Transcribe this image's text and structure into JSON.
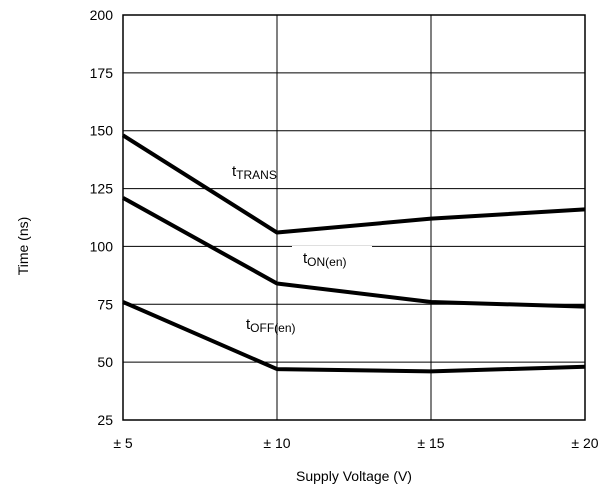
{
  "chart_data": {
    "type": "line",
    "xlabel": "Supply Voltage (V)",
    "ylabel": "Time (ns)",
    "categories": [
      "± 5",
      "± 10",
      "± 15",
      "± 20"
    ],
    "x": [
      5,
      10,
      15,
      20
    ],
    "xlim": [
      5,
      20
    ],
    "ylim": [
      25,
      200
    ],
    "yticks": [
      25,
      50,
      75,
      100,
      125,
      150,
      175,
      200
    ],
    "grid": true,
    "series": [
      {
        "name": "tTRANS",
        "label_main": "t",
        "label_sub": "TRANS",
        "values": [
          148,
          106,
          112,
          116
        ]
      },
      {
        "name": "tON(en)",
        "label_main": "t",
        "label_sub": "ON(en)",
        "values": [
          121,
          84,
          76,
          74
        ]
      },
      {
        "name": "tOFF(en)",
        "label_main": "t",
        "label_sub": "OFF(en)",
        "values": [
          76,
          47,
          46,
          48
        ]
      }
    ]
  }
}
